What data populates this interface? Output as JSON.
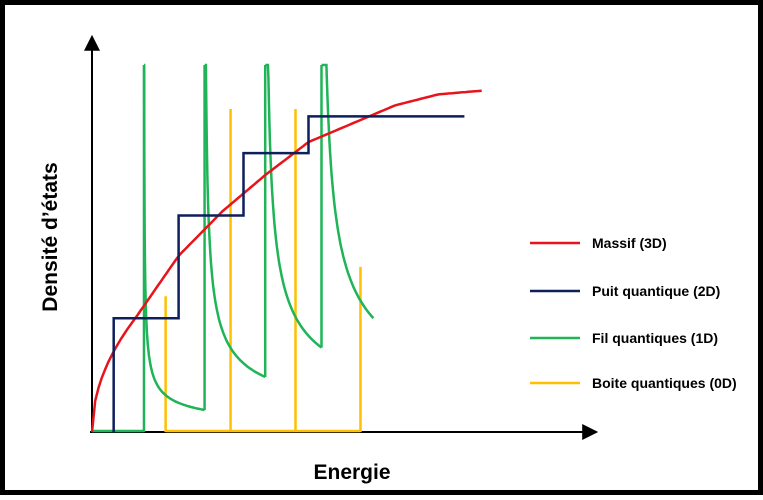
{
  "chart_data": {
    "type": "line",
    "xlabel": "Energie",
    "ylabel": "Densité d’états",
    "xlim": [
      0,
      10
    ],
    "ylim": [
      0,
      10
    ],
    "grid": false,
    "legend_position": "right",
    "series": [
      {
        "name": "Massif (3D)",
        "color": "#e8141b",
        "kind": "sqrt-curve",
        "points": [
          [
            0,
            0
          ],
          [
            1,
            3.1
          ],
          [
            2,
            4.8
          ],
          [
            3,
            6.0
          ],
          [
            4,
            7.0
          ],
          [
            5,
            7.9
          ],
          [
            6,
            8.4
          ],
          [
            7,
            8.9
          ],
          [
            8,
            9.2
          ],
          [
            9,
            9.3
          ]
        ]
      },
      {
        "name": "Puit quantique (2D)",
        "color": "#0d1f5c",
        "kind": "steps",
        "steps": [
          [
            0.5,
            3.1
          ],
          [
            2.0,
            5.9
          ],
          [
            3.5,
            7.6
          ],
          [
            5.0,
            8.6
          ],
          [
            8.6,
            8.6
          ]
        ]
      },
      {
        "name": "Fil quantiques (1D)",
        "color": "#1eb457",
        "kind": "inverse-sqrt",
        "onsets": [
          1.2,
          2.6,
          4.0,
          5.3
        ],
        "tails": [
          [
            2.6,
            0.6
          ],
          [
            4.0,
            1.5
          ],
          [
            5.3,
            2.3
          ],
          [
            6.5,
            3.1
          ]
        ]
      },
      {
        "name": "Boite quantiques (0D)",
        "color": "#ffc000",
        "kind": "delta",
        "levels": [
          1.7,
          3.2,
          4.7,
          6.2
        ],
        "heights": [
          3.7,
          8.8,
          8.8,
          4.5
        ]
      }
    ]
  }
}
